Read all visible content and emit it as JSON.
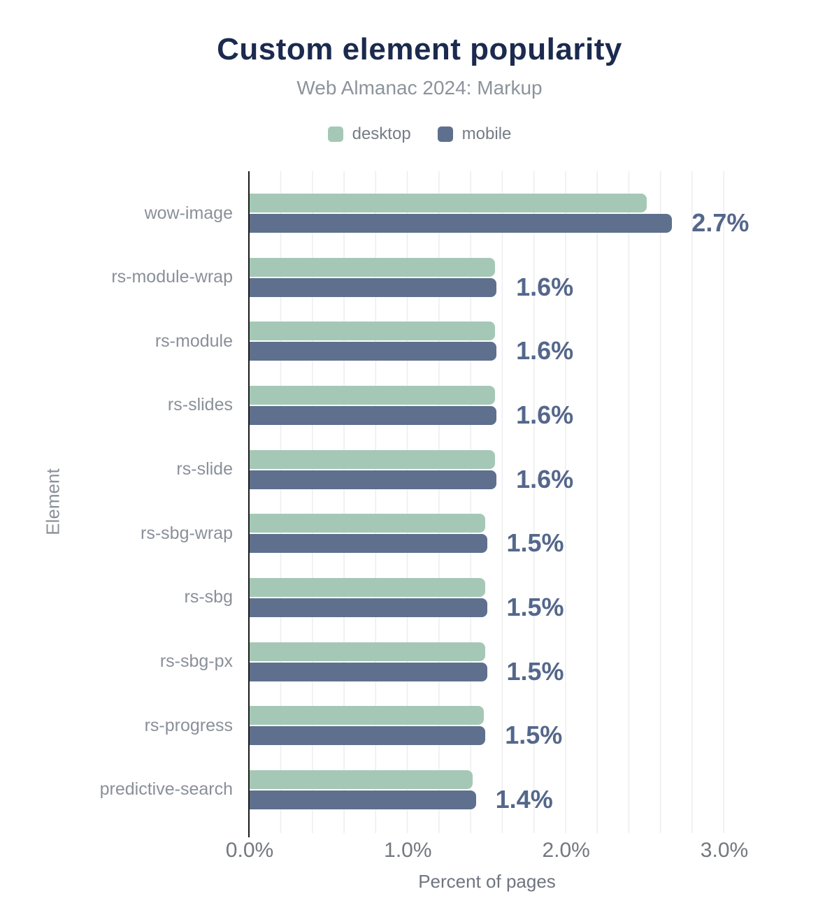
{
  "title": "Custom element popularity",
  "subtitle": "Web Almanac 2024: Markup",
  "legend": [
    {
      "label": "desktop",
      "color": "#a5c8b6"
    },
    {
      "label": "mobile",
      "color": "#5e708e"
    }
  ],
  "colors": {
    "title": "#1b2a4e",
    "subtitle": "#8d939c",
    "legend_text": "#767c86",
    "desktop": "#a5c8b6",
    "mobile": "#5e708e",
    "data_label": "#54678b",
    "category_label": "#8a9099",
    "tick_label": "#73787f",
    "axis_title": "#6f7580",
    "grid": "#ededf1",
    "axis_line": "#1a1a1a"
  },
  "chart_data": {
    "type": "bar",
    "orientation": "horizontal",
    "title": "Custom element popularity",
    "subtitle": "Web Almanac 2024: Markup",
    "xlabel": "Percent of pages",
    "ylabel": "Element",
    "xlim": [
      0,
      3
    ],
    "x_ticks": [
      {
        "value": 0,
        "label": "0.0%"
      },
      {
        "value": 1,
        "label": "1.0%"
      },
      {
        "value": 2,
        "label": "2.0%"
      },
      {
        "value": 3,
        "label": "3.0%"
      }
    ],
    "grid": "minor vertical lines every 0.2%",
    "legend_position": "top-center",
    "categories": [
      "wow-image",
      "rs-module-wrap",
      "rs-module",
      "rs-slides",
      "rs-slide",
      "rs-sbg-wrap",
      "rs-sbg",
      "rs-sbg-px",
      "rs-progress",
      "predictive-search"
    ],
    "series": [
      {
        "name": "desktop",
        "values": [
          2.51,
          1.55,
          1.55,
          1.55,
          1.55,
          1.49,
          1.49,
          1.49,
          1.48,
          1.41
        ]
      },
      {
        "name": "mobile",
        "values": [
          2.67,
          1.56,
          1.56,
          1.56,
          1.56,
          1.5,
          1.5,
          1.5,
          1.49,
          1.43
        ]
      }
    ],
    "data_labels": [
      "2.7%",
      "1.6%",
      "1.6%",
      "1.6%",
      "1.6%",
      "1.5%",
      "1.5%",
      "1.5%",
      "1.5%",
      "1.4%"
    ]
  }
}
